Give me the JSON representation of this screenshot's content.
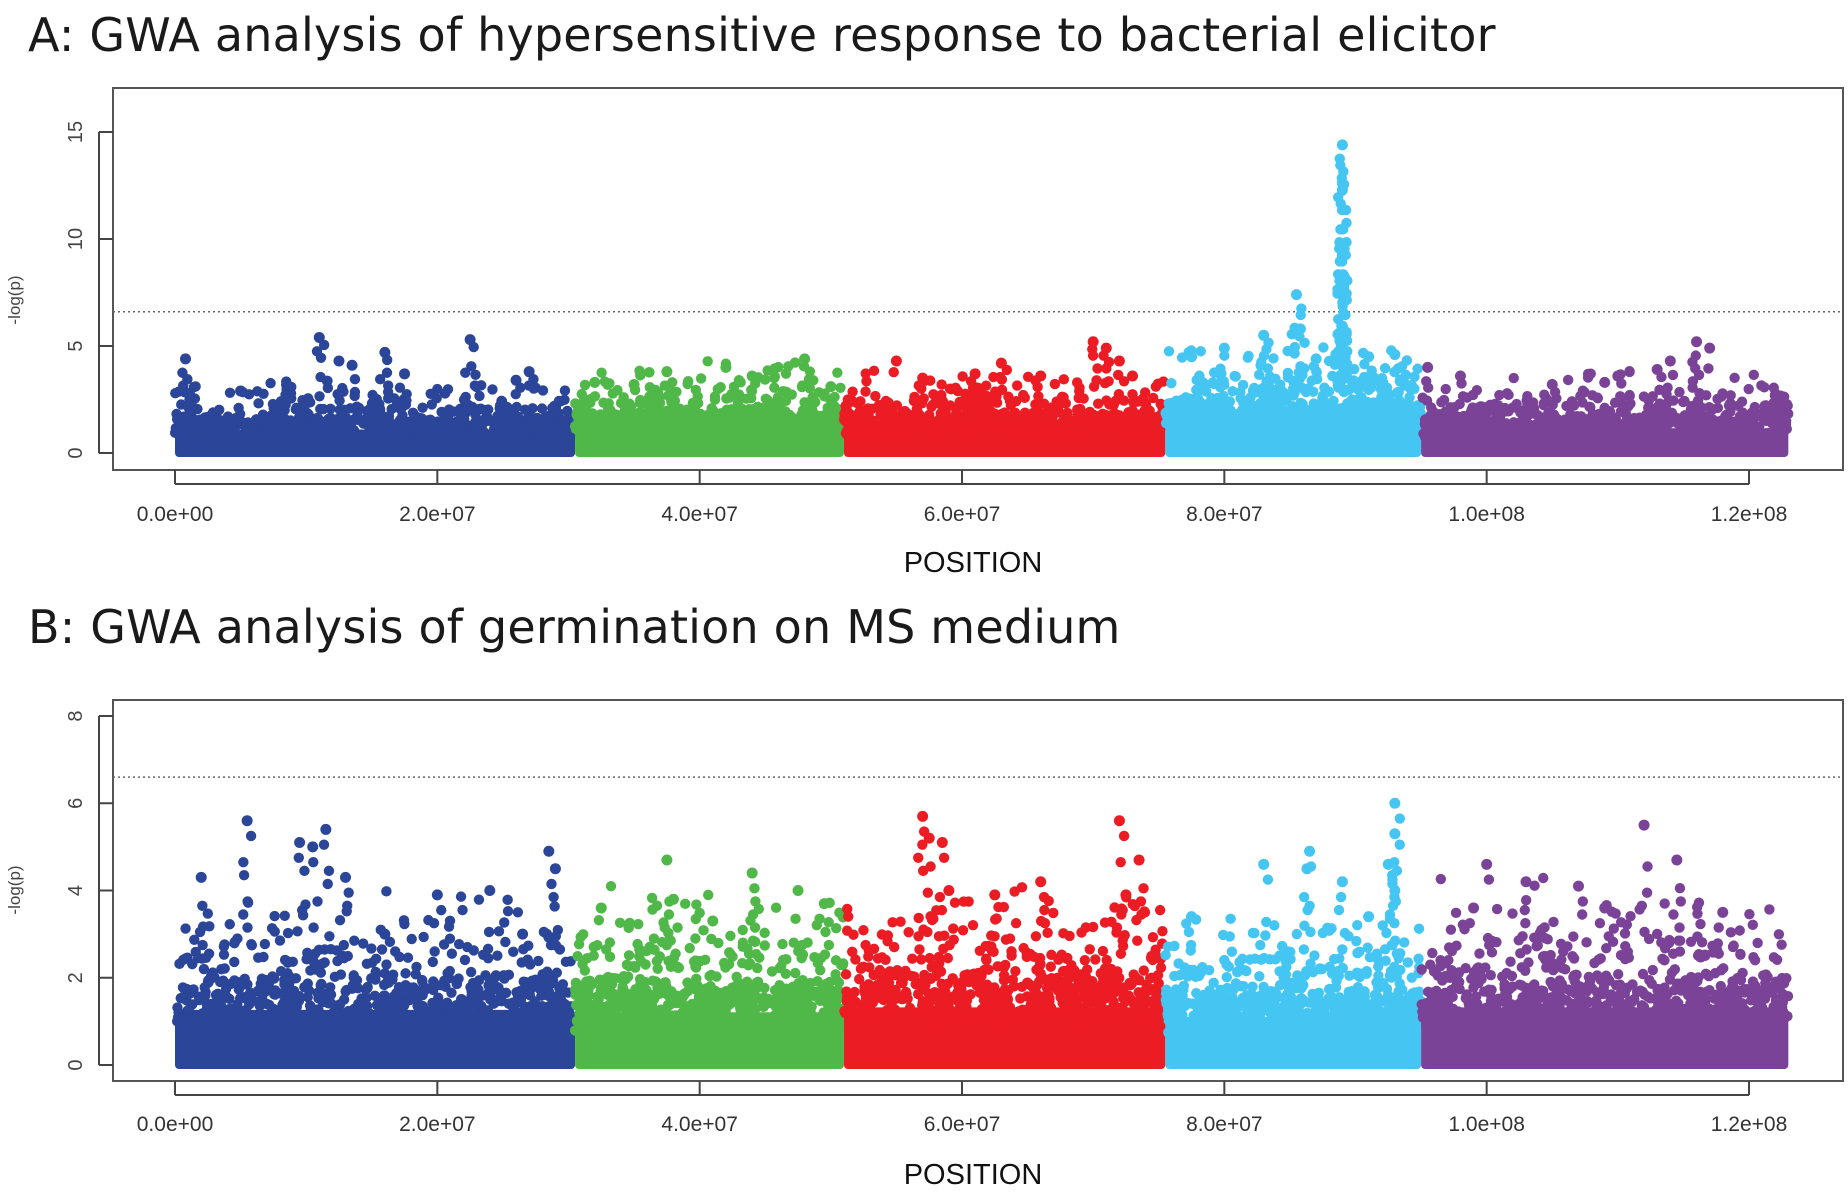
{
  "chart_data": [
    {
      "type": "scatter",
      "title": "A: GWA analysis of hypersensitive response to bacterial elicitor",
      "xlabel": "POSITION",
      "ylabel": "-log(p)",
      "xlim": [
        0,
        123000000
      ],
      "ylim": [
        0,
        15
      ],
      "x_ticks": [
        0,
        20000000,
        40000000,
        60000000,
        80000000,
        100000000,
        120000000
      ],
      "x_tick_labels": [
        "0.0e+00",
        "2.0e+07",
        "4.0e+07",
        "6.0e+07",
        "8.0e+07",
        "1.0e+08",
        "1.2e+08"
      ],
      "y_ticks": [
        0,
        5,
        10,
        15
      ],
      "y_tick_labels": [
        "0",
        "5",
        "10",
        "15"
      ],
      "threshold": 6.6,
      "series": [
        {
          "color": "#2B4599",
          "x_range": [
            0,
            30500000
          ],
          "base_max": 2.0,
          "peaks": [
            [
              800000,
              4.4
            ],
            [
              1100000,
              2.8
            ],
            [
              5000000,
              2.9
            ],
            [
              8500000,
              3.2
            ],
            [
              11000000,
              5.4
            ],
            [
              12500000,
              4.3
            ],
            [
              13500000,
              4.1
            ],
            [
              16000000,
              4.7
            ],
            [
              17500000,
              3.7
            ],
            [
              22500000,
              5.3
            ],
            [
              23000000,
              3.1
            ],
            [
              27000000,
              3.8
            ],
            [
              26000000,
              3.4
            ]
          ]
        },
        {
          "color": "#50B848",
          "x_range": [
            30500000,
            51000000
          ],
          "base_max": 2.3,
          "peaks": [
            [
              32000000,
              3.3
            ],
            [
              35000000,
              3.2
            ],
            [
              37500000,
              3.8
            ],
            [
              42000000,
              4.0
            ],
            [
              44000000,
              3.6
            ],
            [
              48000000,
              4.4
            ],
            [
              50000000,
              3.1
            ]
          ]
        },
        {
          "color": "#EC1C24",
          "x_range": [
            51000000,
            75500000
          ],
          "base_max": 2.2,
          "peaks": [
            [
              55000000,
              4.3
            ],
            [
              57000000,
              3.5
            ],
            [
              61000000,
              3.7
            ],
            [
              63000000,
              4.2
            ],
            [
              66000000,
              3.6
            ],
            [
              70000000,
              5.2
            ],
            [
              71000000,
              4.9
            ],
            [
              72000000,
              4.3
            ],
            [
              73000000,
              3.6
            ]
          ]
        },
        {
          "color": "#45C6F2",
          "x_range": [
            75500000,
            95000000
          ],
          "base_max": 2.8,
          "peaks": [
            [
              77500000,
              4.5
            ],
            [
              80000000,
              4.9
            ],
            [
              83000000,
              5.5
            ],
            [
              85500000,
              7.4
            ],
            [
              85800000,
              5.8
            ],
            [
              89000000,
              14.4
            ],
            [
              89000000,
              12.6
            ],
            [
              89000000,
              12.3
            ],
            [
              89000000,
              9.2
            ],
            [
              89000000,
              5.9
            ],
            [
              88500000,
              4.6
            ],
            [
              91000000,
              4.5
            ],
            [
              93000000,
              4.6
            ],
            [
              87000000,
              4.4
            ]
          ]
        },
        {
          "color": "#7B4397",
          "x_range": [
            95000000,
            123000000
          ],
          "base_max": 2.1,
          "peaks": [
            [
              95500000,
              4.0
            ],
            [
              98000000,
              3.6
            ],
            [
              105000000,
              3.2
            ],
            [
              109000000,
              3.3
            ],
            [
              110000000,
              3.6
            ],
            [
              113000000,
              3.9
            ],
            [
              116000000,
              5.2
            ],
            [
              117000000,
              4.9
            ],
            [
              114000000,
              4.3
            ],
            [
              122000000,
              2.7
            ]
          ]
        }
      ]
    },
    {
      "type": "scatter",
      "title": "B: GWA analysis of germination on MS medium",
      "xlabel": "POSITION",
      "ylabel": "-log(p)",
      "xlim": [
        0,
        123000000
      ],
      "ylim": [
        0,
        8
      ],
      "x_ticks": [
        0,
        20000000,
        40000000,
        60000000,
        80000000,
        100000000,
        120000000
      ],
      "x_tick_labels": [
        "0.0e+00",
        "2.0e+07",
        "4.0e+07",
        "6.0e+07",
        "8.0e+07",
        "1.0e+08",
        "1.2e+08"
      ],
      "y_ticks": [
        0,
        2,
        4,
        6,
        8
      ],
      "y_tick_labels": [
        "0",
        "2",
        "4",
        "6",
        "8"
      ],
      "threshold": 6.6,
      "series": [
        {
          "color": "#2B4599",
          "x_range": [
            0,
            30500000
          ],
          "base_max": 2.3,
          "peaks": [
            [
              2000000,
              4.3
            ],
            [
              5500000,
              5.6
            ],
            [
              9500000,
              5.1
            ],
            [
              10500000,
              5.0
            ],
            [
              11500000,
              5.4
            ],
            [
              13000000,
              4.3
            ],
            [
              20000000,
              3.9
            ],
            [
              24000000,
              4.0
            ],
            [
              28500000,
              4.9
            ],
            [
              29000000,
              4.5
            ],
            [
              16000000,
              3.0
            ],
            [
              26500000,
              3.0
            ]
          ]
        },
        {
          "color": "#50B848",
          "x_range": [
            30500000,
            51000000
          ],
          "base_max": 2.2,
          "peaks": [
            [
              32500000,
              3.6
            ],
            [
              37500000,
              4.7
            ],
            [
              38000000,
              3.8
            ],
            [
              44000000,
              4.4
            ],
            [
              47500000,
              4.0
            ],
            [
              49500000,
              3.7
            ],
            [
              41000000,
              3.3
            ]
          ]
        },
        {
          "color": "#EC1C24",
          "x_range": [
            51000000,
            75500000
          ],
          "base_max": 2.4,
          "peaks": [
            [
              57000000,
              5.7
            ],
            [
              57500000,
              5.2
            ],
            [
              58500000,
              5.1
            ],
            [
              59000000,
              4.0
            ],
            [
              62500000,
              3.9
            ],
            [
              66000000,
              4.2
            ],
            [
              72000000,
              5.6
            ],
            [
              73500000,
              4.7
            ],
            [
              72500000,
              3.9
            ]
          ]
        },
        {
          "color": "#45C6F2",
          "x_range": [
            75500000,
            95000000
          ],
          "base_max": 2.0,
          "peaks": [
            [
              77500000,
              3.4
            ],
            [
              83000000,
              4.6
            ],
            [
              86500000,
              4.9
            ],
            [
              86300000,
              4.5
            ],
            [
              89000000,
              4.2
            ],
            [
              93000000,
              6.0
            ],
            [
              93000000,
              5.3
            ],
            [
              92500000,
              4.6
            ],
            [
              93000000,
              4.0
            ],
            [
              91000000,
              3.4
            ]
          ]
        },
        {
          "color": "#7B4397",
          "x_range": [
            95000000,
            123000000
          ],
          "base_max": 2.4,
          "peaks": [
            [
              100000000,
              4.6
            ],
            [
              103000000,
              4.2
            ],
            [
              107000000,
              4.1
            ],
            [
              112000000,
              5.5
            ],
            [
              114500000,
              4.7
            ],
            [
              118000000,
              3.5
            ],
            [
              99000000,
              3.6
            ],
            [
              109000000,
              3.6
            ]
          ]
        }
      ]
    }
  ]
}
